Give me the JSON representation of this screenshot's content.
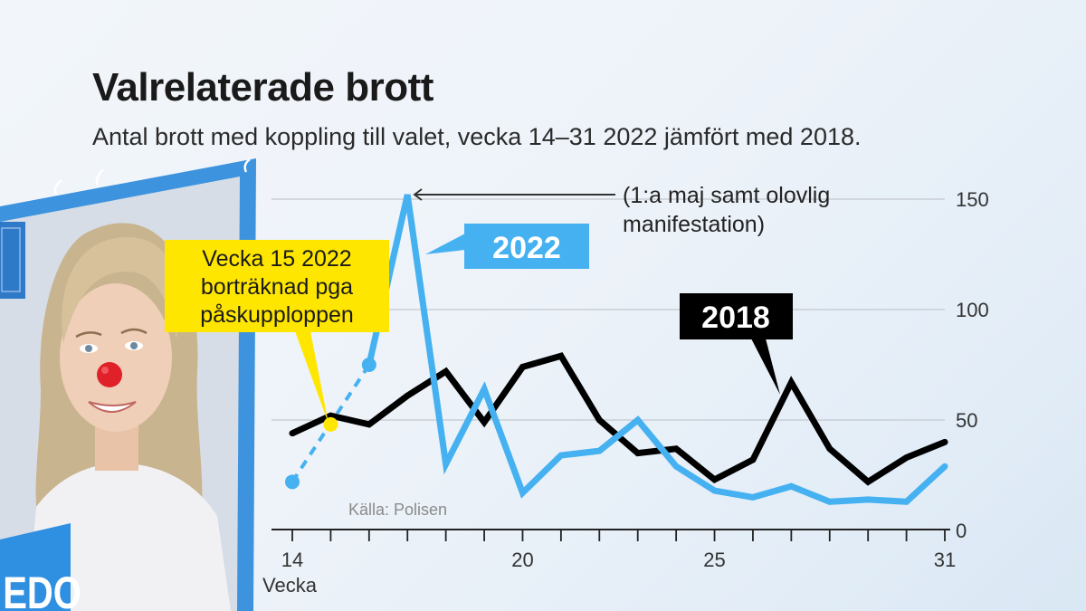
{
  "header": {
    "title": "Valrelaterade brott",
    "subtitle": "Antal brott med koppling till valet, vecka 14–31 2022 jämfört med 2018."
  },
  "poster": {
    "banner_text": "EDO"
  },
  "chart_data": {
    "type": "line",
    "title": "Valrelaterade brott",
    "subtitle": "Antal brott med koppling till valet, vecka 14–31 2022 jämfört med 2018.",
    "xlabel": "Vecka",
    "ylabel": "",
    "x": [
      14,
      15,
      16,
      17,
      18,
      19,
      20,
      21,
      22,
      23,
      24,
      25,
      26,
      27,
      28,
      29,
      30,
      31
    ],
    "x_tick_labels": [
      "14",
      "20",
      "25",
      "31"
    ],
    "x_tick_label_values": [
      14,
      20,
      25,
      31
    ],
    "ylim": [
      0,
      150
    ],
    "y_ticks": [
      0,
      50,
      100,
      150
    ],
    "y_tick_labels": [
      "0",
      "50",
      "100",
      "150"
    ],
    "grid": true,
    "y_axis_side": "right",
    "series": [
      {
        "name": "2018",
        "color": "#000000",
        "values": [
          44,
          52,
          48,
          61,
          72,
          49,
          74,
          79,
          50,
          35,
          37,
          23,
          32,
          67,
          37,
          22,
          33,
          40
        ]
      },
      {
        "name": "2022",
        "color": "#45b1f0",
        "values": [
          22,
          null,
          75,
          152,
          30,
          64,
          17,
          34,
          36,
          50,
          29,
          18,
          15,
          20,
          13,
          14,
          13,
          29
        ],
        "excluded_point": {
          "x": 15,
          "interpolated_value": 48,
          "color": "#ffe600"
        }
      }
    ],
    "annotations": [
      {
        "text_lines": [
          "Vecka 15 2022",
          "borträknad pga",
          "påskupploppen"
        ],
        "points_to": {
          "series": "2022",
          "x": 15
        },
        "background": "#ffe600"
      },
      {
        "text_lines": [
          "(1:a maj samt olovlig",
          "manifestation)"
        ],
        "points_to": {
          "series": "2022",
          "x": 17
        },
        "style": "arrow"
      }
    ],
    "series_labels": [
      {
        "text": "2022",
        "background": "#45b1f0"
      },
      {
        "text": "2018",
        "background": "#000000"
      }
    ],
    "source": "Källa: Polisen"
  }
}
